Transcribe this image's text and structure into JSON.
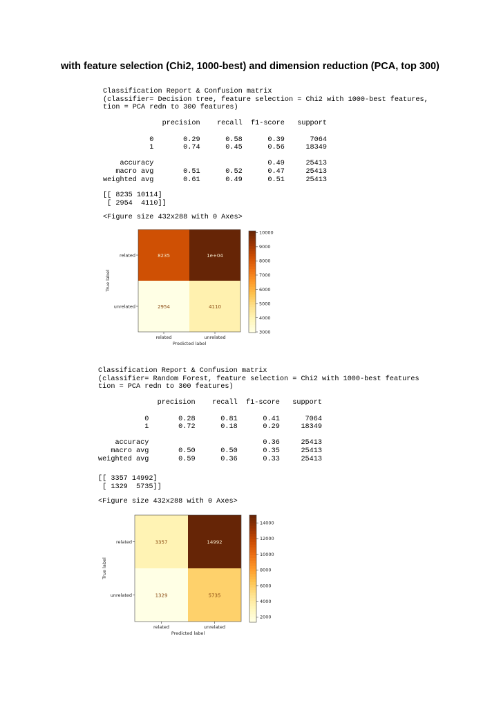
{
  "heading": "with feature selection (Chi2, 1000-best) and dimension reduction (PCA, top 300)",
  "blocks": [
    {
      "report_lines": [
        "Classification Report & Confusion matrix",
        "(classifier= Decision tree, feature selection = Chi2 with 1000-best features,",
        "tion = PCA redn to 300 features)",
        "",
        "              precision    recall  f1-score   support",
        "",
        "           0       0.29      0.58      0.39      7064",
        "           1       0.74      0.45      0.56     18349",
        "",
        "    accuracy                           0.49     25413",
        "   macro avg       0.51      0.52      0.47     25413",
        "weighted avg       0.61      0.49      0.51     25413"
      ],
      "matrix_lines": [
        "[[ 8235 10114]",
        " [ 2954  4110]]"
      ],
      "figure_line": "<Figure size 432x288 with 0 Axes>"
    },
    {
      "report_lines": [
        "Classification Report & Confusion matrix",
        "(classifier= Random Forest, feature selection = Chi2 with 1000-best features",
        "tion = PCA redn to 300 features)",
        "",
        "              precision    recall  f1-score   support",
        "",
        "           0       0.28      0.81      0.41      7064",
        "           1       0.72      0.18      0.29     18349",
        "",
        "    accuracy                           0.36     25413",
        "   macro avg       0.50      0.50      0.35     25413",
        "weighted avg       0.59      0.36      0.33     25413"
      ],
      "matrix_lines": [
        "[[ 3357 14992]",
        " [ 1329  5735]]"
      ],
      "figure_line": "<Figure size 432x288 with 0 Axes>"
    }
  ],
  "chart_data": [
    {
      "type": "heatmap",
      "rows": [
        "related",
        "unrelated"
      ],
      "cols": [
        "related",
        "unrelated"
      ],
      "values": [
        [
          8235,
          10114
        ],
        [
          2954,
          4110
        ]
      ],
      "cell_labels": [
        [
          "8235",
          "1e+04"
        ],
        [
          "2954",
          "4110"
        ]
      ],
      "xlabel": "Predicted label",
      "ylabel": "True label",
      "colorbar_ticks": [
        3000,
        4000,
        5000,
        6000,
        7000,
        8000,
        9000,
        10000
      ],
      "vmin": 2954,
      "vmax": 10114,
      "colormap": "YlOrBr"
    },
    {
      "type": "heatmap",
      "rows": [
        "related",
        "unrelated"
      ],
      "cols": [
        "related",
        "unrelated"
      ],
      "values": [
        [
          3357,
          14992
        ],
        [
          1329,
          5735
        ]
      ],
      "cell_labels": [
        [
          "3357",
          "14992"
        ],
        [
          "1329",
          "5735"
        ]
      ],
      "xlabel": "Predicted label",
      "ylabel": "True label",
      "colorbar_ticks": [
        2000,
        4000,
        6000,
        8000,
        10000,
        12000,
        14000
      ],
      "vmin": 1329,
      "vmax": 14992,
      "colormap": "YlOrBr"
    }
  ]
}
